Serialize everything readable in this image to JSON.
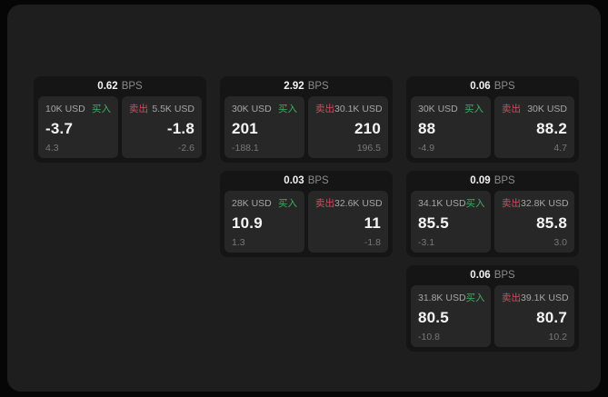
{
  "labels": {
    "buy": "买入",
    "sell": "卖出",
    "bps": "BPS"
  },
  "colors": {
    "buy": "#3fae63",
    "sell": "#cf4e5e",
    "window_bg": "#1e1e1e",
    "card_bg": "#151515",
    "panel_bg": "#272727",
    "value_text": "#f5f5f5",
    "muted_text": "#8a8a8a"
  },
  "cards": [
    {
      "row": 1,
      "col": 1,
      "bps": "0.62",
      "buy": {
        "amount": "10K USD",
        "value": "-3.7",
        "sub": "4.3"
      },
      "sell": {
        "amount": "5.5K USD",
        "value": "-1.8",
        "sub": "-2.6"
      }
    },
    {
      "row": 1,
      "col": 2,
      "bps": "2.92",
      "buy": {
        "amount": "30K USD",
        "value": "201",
        "sub": "-188.1"
      },
      "sell": {
        "amount": "30.1K USD",
        "value": "210",
        "sub": "196.5"
      }
    },
    {
      "row": 1,
      "col": 3,
      "bps": "0.06",
      "buy": {
        "amount": "30K USD",
        "value": "88",
        "sub": "-4.9"
      },
      "sell": {
        "amount": "30K USD",
        "value": "88.2",
        "sub": "4.7"
      }
    },
    {
      "row": 2,
      "col": 2,
      "bps": "0.03",
      "buy": {
        "amount": "28K USD",
        "value": "10.9",
        "sub": "1.3"
      },
      "sell": {
        "amount": "32.6K USD",
        "value": "11",
        "sub": "-1.8"
      }
    },
    {
      "row": 2,
      "col": 3,
      "bps": "0.09",
      "buy": {
        "amount": "34.1K USD",
        "value": "85.5",
        "sub": "-3.1"
      },
      "sell": {
        "amount": "32.8K USD",
        "value": "85.8",
        "sub": "3.0"
      }
    },
    {
      "row": 3,
      "col": 3,
      "bps": "0.06",
      "buy": {
        "amount": "31.8K USD",
        "value": "80.5",
        "sub": "-10.8"
      },
      "sell": {
        "amount": "39.1K USD",
        "value": "80.7",
        "sub": "10.2"
      }
    }
  ]
}
